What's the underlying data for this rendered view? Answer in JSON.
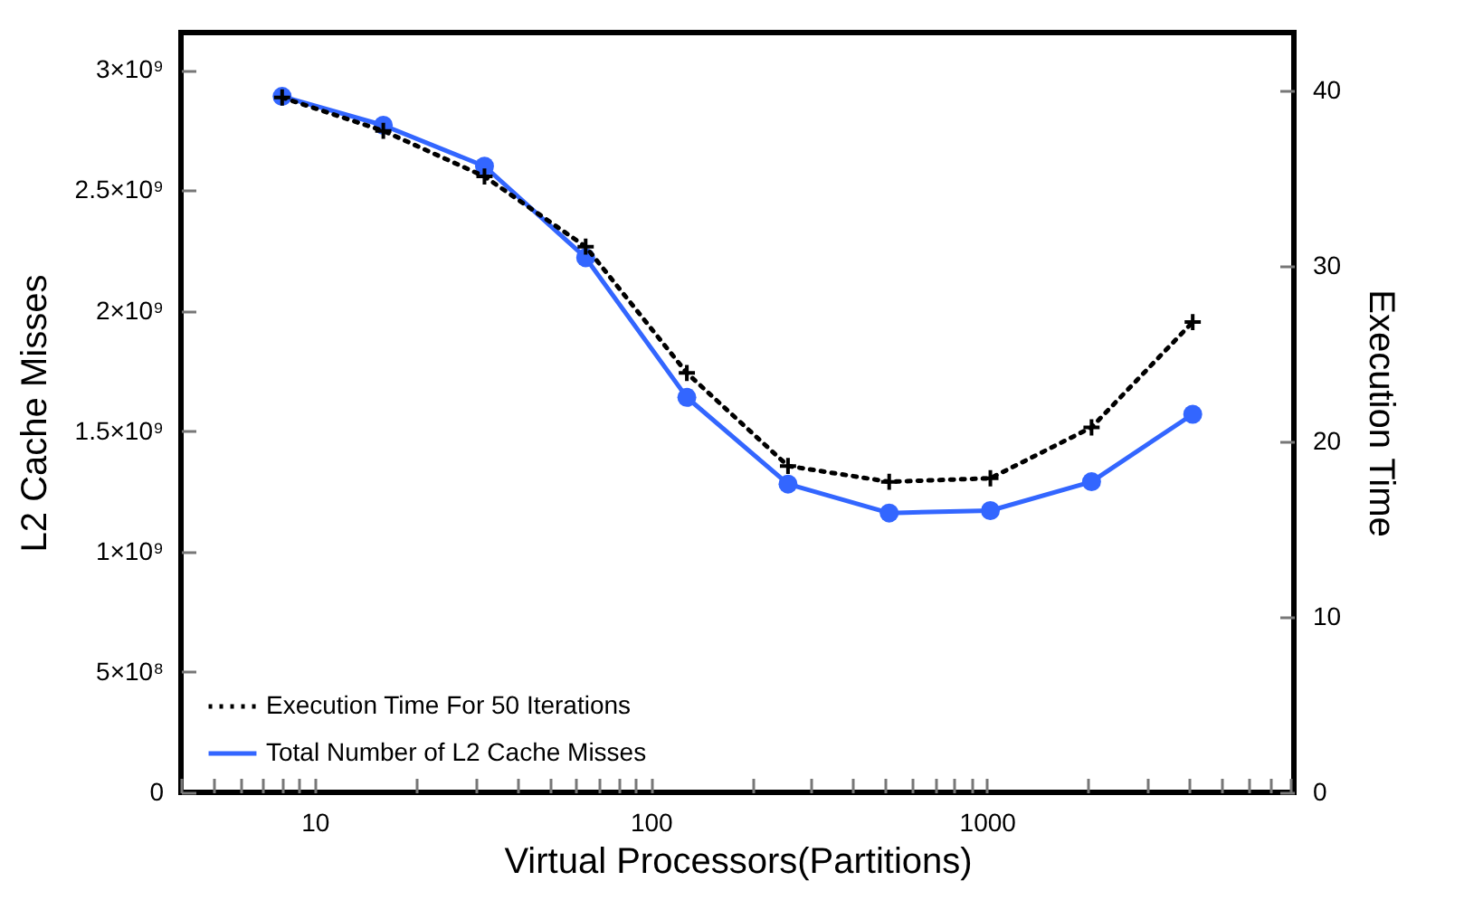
{
  "chart_data": {
    "type": "line",
    "xlabel": "Virtual Processors(Partitions)",
    "ylabel": "L2 Cache Misses",
    "y2label": "Execution Time",
    "x": [
      8,
      16,
      32,
      64,
      128,
      256,
      512,
      1024,
      2048,
      4096
    ],
    "series": [
      {
        "name": "Execution Time For 50 Iterations",
        "color": "#000000",
        "axis": "y2",
        "marker": "cross",
        "line_style": "dotted",
        "values": [
          39.6,
          37.7,
          35.1,
          31.1,
          23.9,
          18.6,
          17.7,
          17.9,
          20.8,
          26.8
        ]
      },
      {
        "name": "Total Number of L2 Cache Misses",
        "color": "#3366ff",
        "marker": "circle",
        "line_style": "solid",
        "values": [
          2890000000.0,
          2770000000.0,
          2600000000.0,
          2220000000.0,
          1640000000.0,
          1280000000.0,
          1160000000.0,
          1170000000.0,
          1290000000.0,
          1570000000.0
        ]
      }
    ],
    "log": "x",
    "xlim": [
      4,
      8192
    ],
    "xticks": [
      {
        "value": 4,
        "label": null
      },
      {
        "value": 5,
        "label": null
      },
      {
        "value": 6,
        "label": null
      },
      {
        "value": 7,
        "label": null
      },
      {
        "value": 8,
        "label": null
      },
      {
        "value": 9,
        "label": null
      },
      10,
      {
        "value": 20,
        "label": null
      },
      {
        "value": 30,
        "label": null
      },
      {
        "value": 40,
        "label": null
      },
      {
        "value": 50,
        "label": null
      },
      {
        "value": 60,
        "label": null
      },
      {
        "value": 70,
        "label": null
      },
      {
        "value": 80,
        "label": null
      },
      {
        "value": 90,
        "label": null
      },
      100,
      {
        "value": 200,
        "label": null
      },
      {
        "value": 300,
        "label": null
      },
      {
        "value": 400,
        "label": null
      },
      {
        "value": 500,
        "label": null
      },
      {
        "value": 600,
        "label": null
      },
      {
        "value": 700,
        "label": null
      },
      {
        "value": 800,
        "label": null
      },
      {
        "value": 900,
        "label": null
      },
      1000,
      {
        "value": 2000,
        "label": null
      },
      {
        "value": 3000,
        "label": null
      },
      {
        "value": 4000,
        "label": null
      },
      {
        "value": 5000,
        "label": null
      },
      {
        "value": 6000,
        "label": null
      },
      {
        "value": 7000,
        "label": null
      },
      {
        "value": 8000,
        "label": null
      }
    ],
    "ylim": [
      0,
      3155000000.0
    ],
    "yticks": [
      0,
      {
        "value": 500000000,
        "label": "5×10⁸"
      },
      {
        "value": 1000000000,
        "label": "1×10⁹"
      },
      {
        "value": 1500000000,
        "label": "1.5×10⁹"
      },
      {
        "value": 2000000000,
        "label": "2×10⁹"
      },
      {
        "value": 2500000000,
        "label": "2.5×10⁹"
      },
      {
        "value": 3000000000,
        "label": "3×10⁹"
      }
    ],
    "y2lim": [
      0,
      43.3
    ],
    "y2ticks": [
      0,
      10,
      20,
      30,
      40
    ],
    "grid": false,
    "legend": "bottom left"
  }
}
